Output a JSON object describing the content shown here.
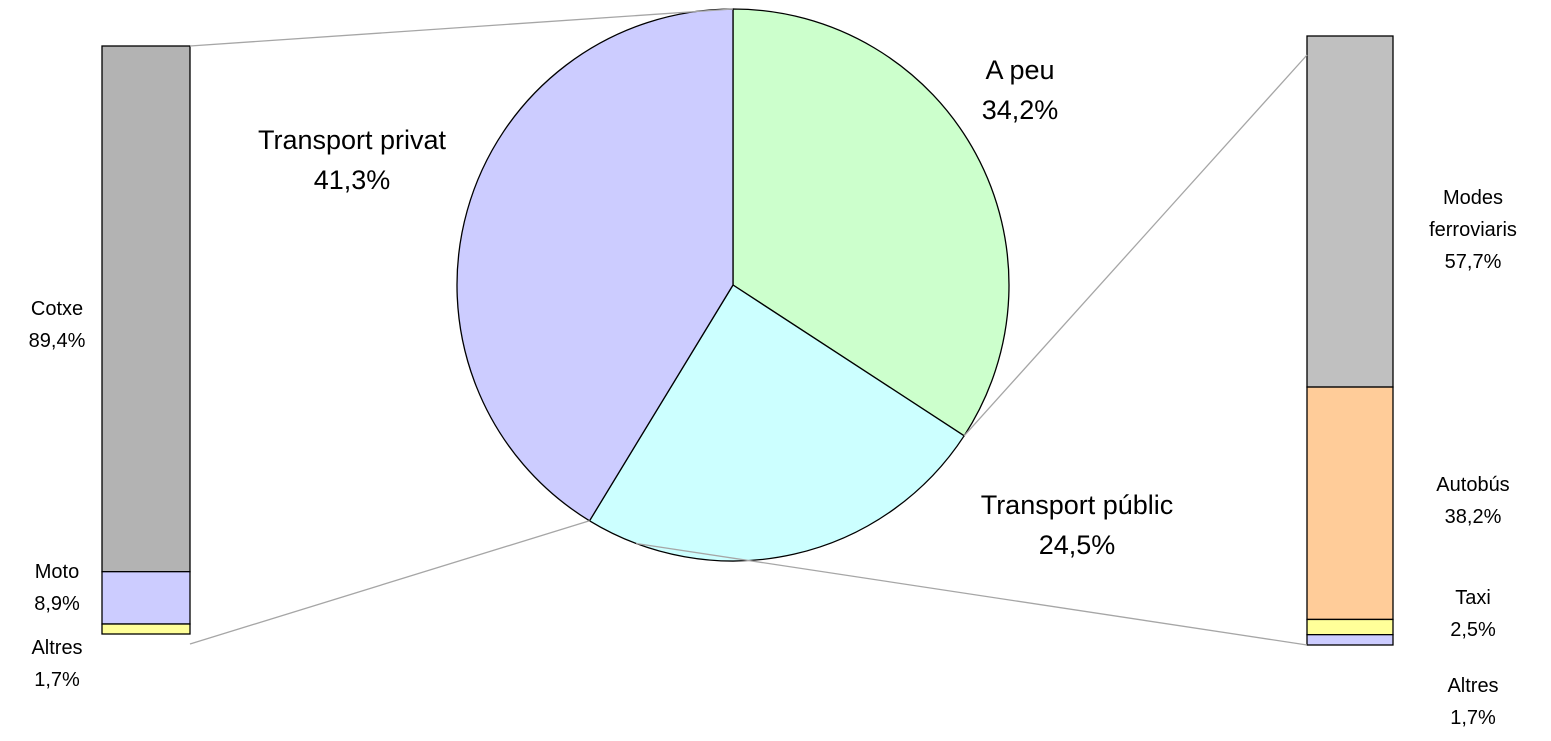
{
  "chart_data": [
    {
      "type": "pie",
      "categories": [
        "A peu",
        "Transport públic",
        "Transport privat"
      ],
      "values": [
        34.2,
        24.5,
        41.3
      ],
      "value_labels": [
        "34,2%",
        "24,5%",
        "41,3%"
      ],
      "colors": [
        "#ccffcc",
        "#ccffff",
        "#ccccff"
      ]
    },
    {
      "type": "stacked-bar",
      "series": [
        {
          "name": "Cotxe",
          "color": "#b3b3b3",
          "values": [
            89.4
          ],
          "value_labels": [
            "89,4%"
          ]
        },
        {
          "name": "Moto",
          "color": "#ccccff",
          "values": [
            8.9
          ],
          "value_labels": [
            "8,9%"
          ]
        },
        {
          "name": "Altres",
          "color": "#ffff99",
          "values": [
            1.7
          ],
          "value_labels": [
            "1,7%"
          ]
        }
      ]
    },
    {
      "type": "stacked-bar",
      "series": [
        {
          "name": "Modes ferroviaris",
          "color": "#c0c0c0",
          "values": [
            57.7
          ],
          "value_labels": [
            "57,7%"
          ]
        },
        {
          "name": "Autobús",
          "color": "#ffcc99",
          "values": [
            38.2
          ],
          "value_labels": [
            "38,2%"
          ]
        },
        {
          "name": "Taxi",
          "color": "#ffff99",
          "values": [
            2.5
          ],
          "value_labels": [
            "2,5%"
          ]
        },
        {
          "name": "Altres",
          "color": "#ccccff",
          "values": [
            1.7
          ],
          "value_labels": [
            "1,7%"
          ]
        }
      ]
    }
  ]
}
